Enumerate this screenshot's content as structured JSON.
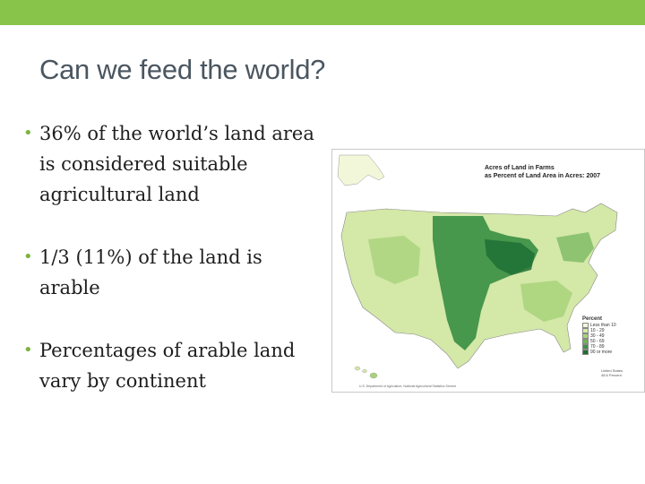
{
  "slide": {
    "title": "Can we feed the world?",
    "accent_color": "#88c34a",
    "bullets": [
      {
        "text": "36% of the world’s land area is considered suitable agricultural land"
      },
      {
        "text": "1/3 (11%) of the land is arable"
      },
      {
        "text": "Percentages of arable land vary by continent"
      }
    ]
  },
  "map": {
    "title": "Acres of Land in Farms\nas Percent of Land Area in Acres: 2007",
    "legend_title": "Percent",
    "legend": [
      {
        "label": "Less than 10",
        "color": "#f3f7d9"
      },
      {
        "label": "10 - 29",
        "color": "#d4e8a8"
      },
      {
        "label": "30 - 49",
        "color": "#a8d27a"
      },
      {
        "label": "50 - 69",
        "color": "#6fb35a"
      },
      {
        "label": "70 - 89",
        "color": "#3f9247"
      },
      {
        "label": "90 or more",
        "color": "#1f6e35"
      }
    ],
    "corner_note": "United States\n48.6 Percent",
    "source": "U.S. Department of Agriculture, National Agricultural Statistics Service"
  }
}
